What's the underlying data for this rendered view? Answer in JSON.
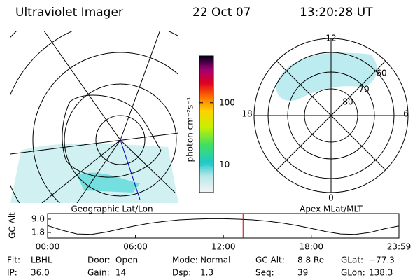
{
  "header": {
    "instrument": "Ultraviolet Imager",
    "date": "22 Oct 07",
    "time": "13:20:28 UT"
  },
  "left_map": {
    "label": "Geographic Lat/Lon"
  },
  "colorbar": {
    "unit": "photon cm⁻²s⁻¹",
    "log": true,
    "range": [
      3.6,
      565
    ],
    "ticks": [
      10,
      100
    ]
  },
  "right_map": {
    "label": "Apex MLat/MLT",
    "mlt_labels": [
      "12",
      "18",
      "6",
      "0"
    ],
    "mlat_labels": [
      "60",
      "70",
      "80"
    ]
  },
  "orbit": {
    "ylabel": "GC Alt",
    "ylim": [
      -1.2,
      12.0
    ],
    "yticks": [
      {
        "value": 9,
        "label": "9.0"
      },
      1.8
    ],
    "xlim": [
      0,
      23.983
    ],
    "xticks": [
      {
        "value": 0,
        "label": "00:00"
      },
      {
        "value": 6,
        "label": "06:00"
      },
      {
        "value": 12,
        "label": "12:00"
      },
      {
        "value": 18,
        "label": "18:00"
      },
      {
        "value": 23.983,
        "label": "23:59"
      }
    ],
    "hours": [
      0,
      1,
      2,
      3,
      4,
      5,
      6,
      7,
      8,
      9,
      10,
      11,
      12,
      13,
      14,
      15,
      16,
      17,
      18,
      19,
      20,
      21,
      22,
      23,
      23.983
    ],
    "altitude": [
      5.5,
      3.0,
      1.0,
      0.8,
      2.0,
      3.8,
      5.4,
      6.8,
      7.8,
      8.6,
      9.0,
      9.2,
      9.2,
      9.0,
      8.6,
      7.9,
      6.9,
      5.6,
      4.0,
      2.3,
      1.0,
      0.8,
      1.8,
      3.8,
      5.3
    ],
    "marker_hour": 13.341,
    "marker_color": "#c00000"
  },
  "info": [
    [
      {
        "label": "Flt:",
        "value": "LBHL"
      },
      {
        "label": "Door:",
        "value": "Open"
      },
      {
        "label": "Mode:",
        "value": "Normal"
      },
      {
        "label": "GC Alt:",
        "value": "8.8 Re"
      },
      {
        "label": "GLat:",
        "value": "−77.3"
      }
    ],
    [
      {
        "label": "IP:",
        "value": "36.0"
      },
      {
        "label": "Gain:",
        "value": "14"
      },
      {
        "label": "Dsp:",
        "value": "1.3"
      },
      {
        "label": "Seq:",
        "value": "39"
      },
      {
        "label": "GLon:",
        "value": "138.3"
      }
    ]
  ]
}
